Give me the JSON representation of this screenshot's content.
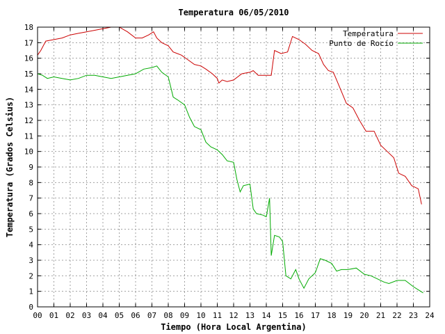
{
  "chart_data": {
    "type": "line",
    "title": "Temperatura 06/05/2010",
    "xlabel": "Tiempo (Hora Local Argentina)",
    "ylabel": "Temperatura (Grados Celsius)",
    "xlim": [
      0,
      24
    ],
    "ylim": [
      0,
      18
    ],
    "x_ticks": [
      "00",
      "01",
      "02",
      "03",
      "04",
      "05",
      "06",
      "07",
      "08",
      "09",
      "10",
      "11",
      "12",
      "13",
      "14",
      "15",
      "16",
      "17",
      "18",
      "19",
      "20",
      "21",
      "22",
      "23",
      "24"
    ],
    "y_ticks": [
      "0",
      "1",
      "2",
      "3",
      "4",
      "5",
      "6",
      "7",
      "8",
      "9",
      "10",
      "11",
      "12",
      "13",
      "14",
      "15",
      "16",
      "17",
      "18"
    ],
    "grid": true,
    "legend_position": "top-right",
    "series": [
      {
        "name": "Temperatura",
        "color": "#cc0000",
        "x": [
          0,
          0.2,
          0.5,
          1,
          1.5,
          2,
          2.5,
          3,
          3.5,
          4,
          4.5,
          5,
          5.5,
          6,
          6.4,
          6.8,
          7.1,
          7.3,
          7.6,
          8,
          8.3,
          8.8,
          9.2,
          9.6,
          10,
          10.3,
          10.7,
          11,
          11.1,
          11.3,
          11.6,
          12,
          12.5,
          13,
          13.2,
          13.5,
          14,
          14.3,
          14.5,
          14.9,
          15.3,
          15.6,
          16,
          16.4,
          16.8,
          17.2,
          17.5,
          17.8,
          18.1,
          18.5,
          18.9,
          19.3,
          19.7,
          20.1,
          20.6,
          21,
          21.4,
          21.8,
          22.1,
          22.5,
          22.9,
          23.3,
          23.5
        ],
        "y": [
          16.2,
          16.5,
          17.1,
          17.2,
          17.3,
          17.5,
          17.6,
          17.7,
          17.8,
          17.9,
          18.0,
          18.0,
          17.7,
          17.3,
          17.3,
          17.5,
          17.7,
          17.3,
          17.0,
          16.8,
          16.4,
          16.2,
          15.9,
          15.6,
          15.5,
          15.3,
          15.0,
          14.7,
          14.4,
          14.6,
          14.5,
          14.6,
          15.0,
          15.1,
          15.2,
          14.9,
          14.9,
          14.9,
          16.5,
          16.3,
          16.4,
          17.4,
          17.2,
          16.9,
          16.5,
          16.3,
          15.6,
          15.2,
          15.1,
          14.1,
          13.1,
          12.8,
          12.0,
          11.3,
          11.3,
          10.4,
          10.0,
          9.6,
          8.6,
          8.4,
          7.8,
          7.6,
          6.6
        ]
      },
      {
        "name": "Punto de Rocío",
        "color": "#00aa00",
        "x": [
          0,
          0.3,
          0.6,
          1,
          1.5,
          2,
          2.5,
          3,
          3.5,
          4,
          4.5,
          5,
          5.5,
          6,
          6.5,
          7,
          7.3,
          7.6,
          8,
          8.3,
          8.6,
          9,
          9.3,
          9.6,
          10,
          10.3,
          10.6,
          11,
          11.3,
          11.6,
          12,
          12.2,
          12.4,
          12.6,
          13,
          13.2,
          13.4,
          13.8,
          14,
          14.2,
          14.3,
          14.5,
          14.8,
          15,
          15.2,
          15.5,
          15.8,
          16,
          16.3,
          16.6,
          17,
          17.3,
          17.6,
          18,
          18.3,
          18.6,
          19,
          19.5,
          20,
          20.4,
          20.8,
          21.2,
          21.5,
          22,
          22.5,
          23,
          23.3,
          23.6
        ],
        "y": [
          15.0,
          14.9,
          14.7,
          14.8,
          14.7,
          14.6,
          14.7,
          14.9,
          14.9,
          14.8,
          14.7,
          14.8,
          14.9,
          15.0,
          15.3,
          15.4,
          15.5,
          15.1,
          14.8,
          13.5,
          13.3,
          13.0,
          12.2,
          11.6,
          11.4,
          10.6,
          10.3,
          10.1,
          9.8,
          9.4,
          9.3,
          8.2,
          7.4,
          7.8,
          7.9,
          6.3,
          6.0,
          5.9,
          5.8,
          7.0,
          3.3,
          4.6,
          4.5,
          4.2,
          2.0,
          1.8,
          2.4,
          1.8,
          1.2,
          1.8,
          2.2,
          3.1,
          3.0,
          2.8,
          2.3,
          2.4,
          2.4,
          2.5,
          2.1,
          2.0,
          1.8,
          1.6,
          1.5,
          1.7,
          1.7,
          1.3,
          1.1,
          0.9
        ]
      }
    ]
  }
}
